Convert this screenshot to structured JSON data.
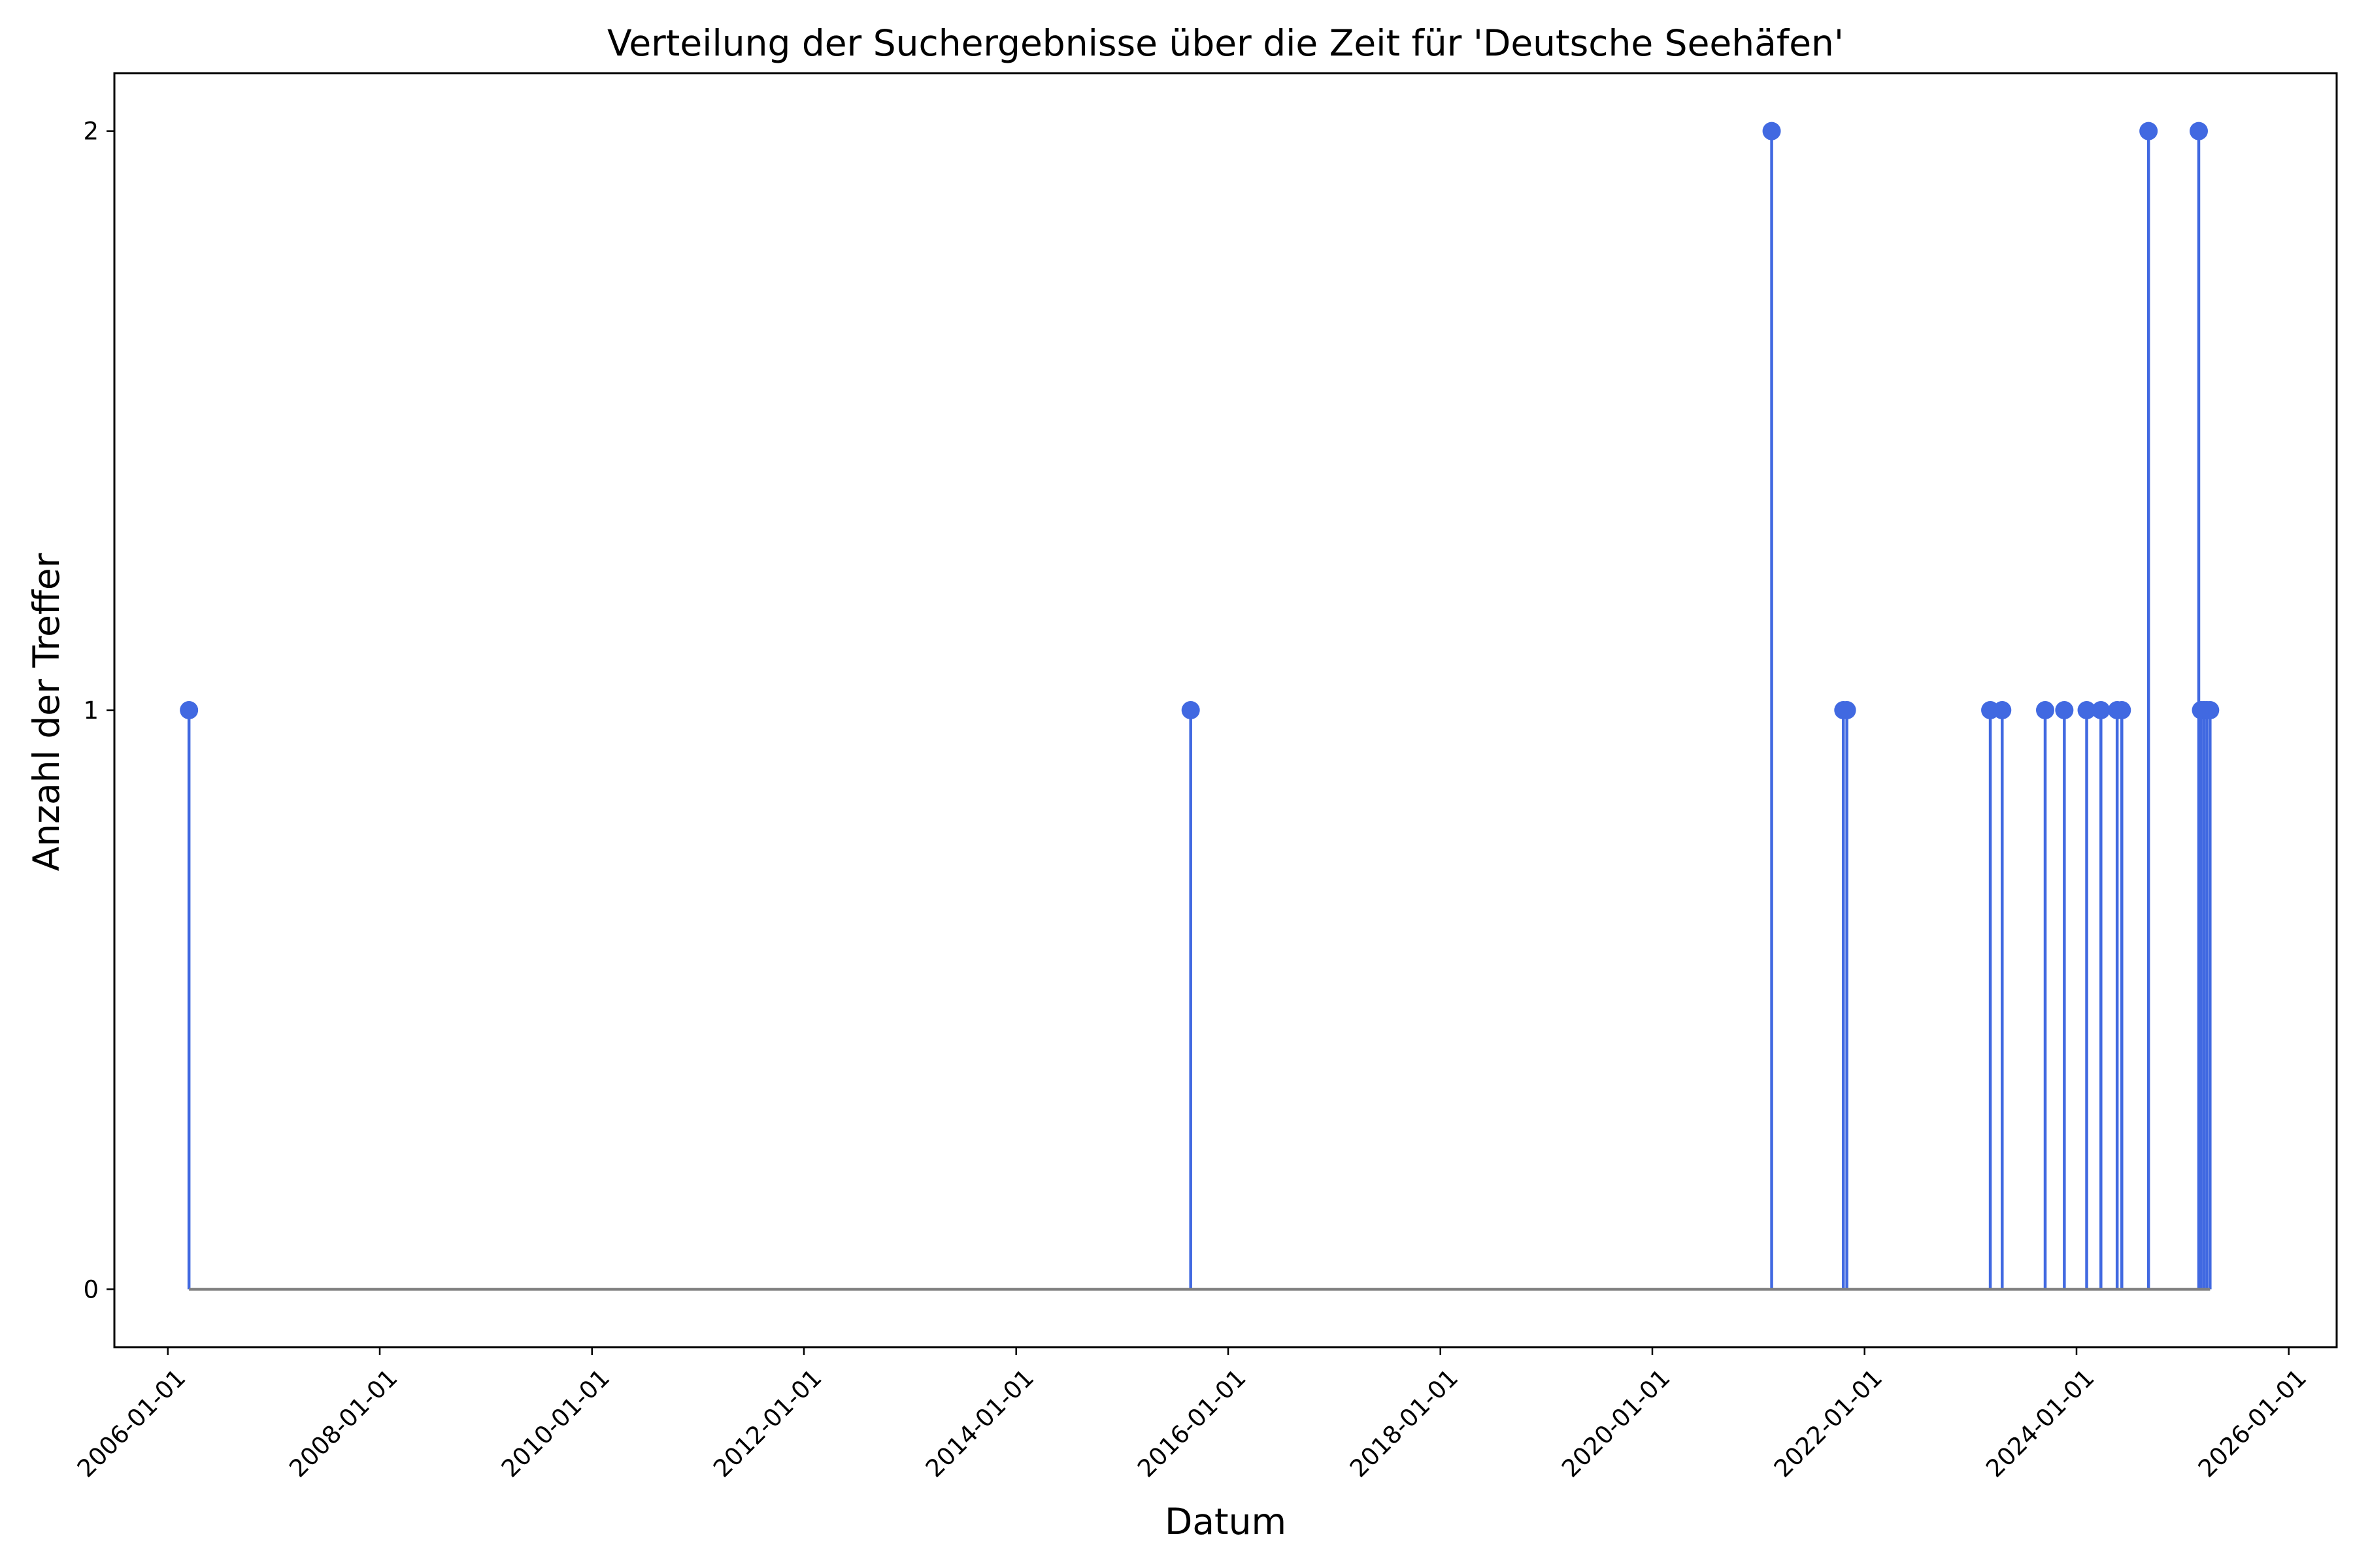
{
  "chart_data": {
    "type": "stem",
    "title": "Verteilung der Suchergebnisse über die Zeit für 'Deutsche Seehäfen'",
    "xlabel": "Datum",
    "ylabel": "Anzahl der Treffer",
    "x_ticks": [
      "2006-01-01",
      "2008-01-01",
      "2010-01-01",
      "2012-01-01",
      "2014-01-01",
      "2016-01-01",
      "2018-01-01",
      "2020-01-01",
      "2022-01-01",
      "2024-01-01",
      "2026-01-01"
    ],
    "y_ticks": [
      0,
      1,
      2
    ],
    "xlim": [
      "2005-07-01",
      "2026-06-15"
    ],
    "ylim": [
      -0.1,
      2.1
    ],
    "grid": false,
    "colors": {
      "stem": "#4169E1",
      "baseline": "#808080",
      "axes": "#000000"
    },
    "series": [
      {
        "points": [
          {
            "date": "2006-03-15",
            "value": 1
          },
          {
            "date": "2015-08-25",
            "value": 1
          },
          {
            "date": "2021-02-15",
            "value": 2
          },
          {
            "date": "2021-10-20",
            "value": 1
          },
          {
            "date": "2021-11-01",
            "value": 1
          },
          {
            "date": "2023-03-10",
            "value": 1
          },
          {
            "date": "2023-04-20",
            "value": 1
          },
          {
            "date": "2023-09-15",
            "value": 1
          },
          {
            "date": "2023-11-20",
            "value": 1
          },
          {
            "date": "2024-02-05",
            "value": 1
          },
          {
            "date": "2024-03-25",
            "value": 1
          },
          {
            "date": "2024-05-20",
            "value": 1
          },
          {
            "date": "2024-06-05",
            "value": 1
          },
          {
            "date": "2024-09-05",
            "value": 2
          },
          {
            "date": "2025-02-25",
            "value": 2
          },
          {
            "date": "2025-03-05",
            "value": 1
          },
          {
            "date": "2025-03-15",
            "value": 1
          },
          {
            "date": "2025-03-25",
            "value": 1
          },
          {
            "date": "2025-04-05",
            "value": 1
          }
        ]
      }
    ]
  }
}
